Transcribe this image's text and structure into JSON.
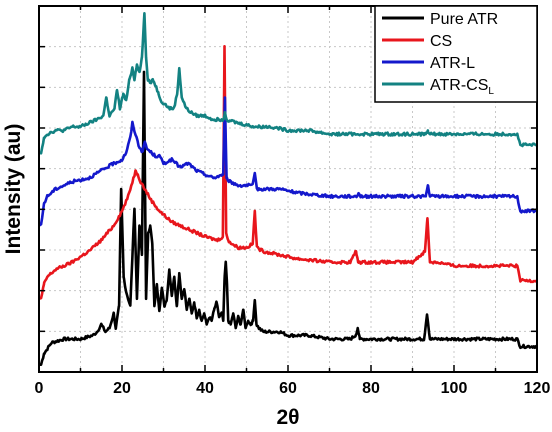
{
  "chart_data": {
    "type": "line",
    "xlabel": "2θ",
    "ylabel": "Intensity (au)",
    "xlim": [
      0,
      120
    ],
    "x_ticks": [
      "0",
      "20",
      "40",
      "60",
      "80",
      "100",
      "120"
    ],
    "y_tick_labels_shown": false,
    "grid": true,
    "legend_position": "top-right",
    "series": [
      {
        "name": "Pure ATR",
        "legend_main": "Pure ATR",
        "legend_sub": "",
        "color": "#000000",
        "baseline": 0.02,
        "x": [
          0.5,
          1.2,
          3,
          6,
          10,
          13,
          14,
          15,
          16,
          17,
          18,
          18.5,
          19.3,
          19.8,
          20.4,
          21,
          22,
          23,
          23.6,
          24.2,
          24.8,
          25.3,
          25.8,
          26.3,
          26.8,
          27.3,
          27.8,
          28.4,
          29,
          29.6,
          30.2,
          30.8,
          31.4,
          32,
          32.6,
          33.2,
          33.8,
          34.4,
          35,
          35.6,
          36.2,
          36.8,
          37.4,
          38,
          38.6,
          39.2,
          39.8,
          40.4,
          41,
          41.6,
          42.2,
          42.8,
          43.4,
          44,
          44.4,
          44.7,
          45,
          45.3,
          45.6,
          46.2,
          46.8,
          47.4,
          48,
          48.6,
          49.2,
          49.8,
          50.4,
          51,
          51.6,
          52,
          52.4,
          53,
          54,
          56,
          58,
          60,
          65,
          70,
          75,
          76.3,
          76.8,
          77.3,
          79,
          85,
          90,
          92.8,
          93.5,
          94.2,
          96,
          100,
          110,
          115.2,
          116,
          118,
          120
        ],
        "y": [
          0.02,
          0.05,
          0.08,
          0.09,
          0.09,
          0.1,
          0.11,
          0.13,
          0.11,
          0.12,
          0.16,
          0.12,
          0.18,
          0.5,
          0.26,
          0.22,
          0.18,
          0.45,
          0.2,
          0.4,
          0.32,
          0.82,
          0.2,
          0.38,
          0.4,
          0.35,
          0.18,
          0.24,
          0.17,
          0.23,
          0.18,
          0.2,
          0.28,
          0.21,
          0.26,
          0.18,
          0.27,
          0.2,
          0.23,
          0.17,
          0.2,
          0.16,
          0.19,
          0.15,
          0.17,
          0.14,
          0.16,
          0.13,
          0.15,
          0.14,
          0.17,
          0.19,
          0.15,
          0.16,
          0.14,
          0.25,
          0.3,
          0.24,
          0.14,
          0.13,
          0.16,
          0.12,
          0.15,
          0.13,
          0.17,
          0.12,
          0.14,
          0.13,
          0.14,
          0.2,
          0.13,
          0.12,
          0.11,
          0.11,
          0.11,
          0.1,
          0.1,
          0.09,
          0.09,
          0.1,
          0.12,
          0.09,
          0.09,
          0.09,
          0.09,
          0.09,
          0.16,
          0.09,
          0.09,
          0.09,
          0.09,
          0.09,
          0.07,
          0.07,
          0.07
        ]
      },
      {
        "name": "CS",
        "legend_main": "CS",
        "legend_sub": "",
        "color": "#e8161c",
        "baseline": 0.2,
        "x": [
          0.5,
          1.2,
          2,
          4,
          8,
          12,
          15,
          18,
          20,
          21.5,
          22.5,
          23.3,
          23.8,
          24.5,
          25.5,
          27,
          29,
          32,
          36,
          40,
          43,
          44.3,
          44.7,
          45.1,
          45.6,
          46.5,
          48,
          50,
          51.5,
          52,
          52.5,
          54,
          58,
          62,
          70,
          75,
          76.4,
          76.9,
          77.4,
          80,
          85,
          90,
          93,
          93.6,
          94.2,
          96,
          100,
          105,
          110,
          115.2,
          116,
          118,
          120
        ],
        "y": [
          0.2,
          0.24,
          0.26,
          0.28,
          0.3,
          0.33,
          0.36,
          0.4,
          0.44,
          0.48,
          0.52,
          0.55,
          0.54,
          0.52,
          0.5,
          0.47,
          0.44,
          0.41,
          0.39,
          0.37,
          0.36,
          0.37,
          0.89,
          0.38,
          0.36,
          0.35,
          0.34,
          0.34,
          0.35,
          0.44,
          0.34,
          0.33,
          0.32,
          0.31,
          0.3,
          0.3,
          0.33,
          0.3,
          0.3,
          0.3,
          0.3,
          0.3,
          0.33,
          0.42,
          0.3,
          0.3,
          0.29,
          0.29,
          0.29,
          0.29,
          0.25,
          0.25,
          0.25
        ]
      },
      {
        "name": "ATR-L",
        "legend_main": "ATR-L",
        "legend_sub": "",
        "color": "#1418cc",
        "baseline": 0.4,
        "x": [
          0.5,
          1.2,
          2,
          4,
          8,
          12,
          15,
          18,
          20,
          21,
          22,
          22.5,
          23,
          24,
          25,
          25.5,
          26,
          27,
          28,
          29,
          30,
          32,
          34,
          36,
          38,
          40,
          42,
          44.4,
          44.8,
          45.2,
          46,
          48,
          50,
          51.5,
          52,
          52.5,
          54,
          58,
          62,
          70,
          76.5,
          77,
          77.5,
          85,
          90,
          93.2,
          93.7,
          94.2,
          100,
          110,
          115.2,
          116,
          118,
          120
        ],
        "y": [
          0.4,
          0.46,
          0.48,
          0.5,
          0.52,
          0.53,
          0.55,
          0.57,
          0.58,
          0.6,
          0.64,
          0.68,
          0.66,
          0.62,
          0.6,
          0.63,
          0.61,
          0.6,
          0.59,
          0.59,
          0.57,
          0.58,
          0.56,
          0.57,
          0.55,
          0.54,
          0.53,
          0.54,
          0.75,
          0.53,
          0.52,
          0.51,
          0.51,
          0.51,
          0.54,
          0.5,
          0.5,
          0.5,
          0.49,
          0.48,
          0.48,
          0.49,
          0.48,
          0.48,
          0.48,
          0.48,
          0.51,
          0.48,
          0.48,
          0.48,
          0.48,
          0.44,
          0.44,
          0.44
        ]
      },
      {
        "name": "ATR-CSL",
        "legend_main": "ATR-CS",
        "legend_sub": "L",
        "color": "#138282",
        "baseline": 0.6,
        "x": [
          0.5,
          1.2,
          2,
          4,
          6,
          8,
          10,
          12,
          14,
          15.5,
          16.2,
          17,
          18.2,
          18.8,
          19.5,
          20.3,
          21,
          21.8,
          22.5,
          23,
          23.6,
          24.2,
          24.8,
          25.4,
          25.8,
          26.2,
          26.8,
          27.4,
          28.2,
          28.8,
          29.5,
          30.5,
          31.5,
          32.5,
          33.3,
          33.8,
          34.4,
          35.5,
          36.5,
          38,
          40,
          42,
          44.4,
          44.8,
          45.2,
          48,
          52,
          56,
          60,
          65,
          70,
          75,
          80,
          85,
          90,
          93.2,
          93.7,
          94.2,
          100,
          110,
          115.2,
          116,
          118,
          120
        ],
        "y": [
          0.6,
          0.64,
          0.65,
          0.66,
          0.66,
          0.67,
          0.67,
          0.68,
          0.69,
          0.7,
          0.75,
          0.7,
          0.72,
          0.77,
          0.72,
          0.76,
          0.74,
          0.8,
          0.83,
          0.8,
          0.84,
          0.82,
          0.86,
          0.98,
          0.86,
          0.8,
          0.79,
          0.8,
          0.78,
          0.76,
          0.74,
          0.73,
          0.72,
          0.72,
          0.76,
          0.83,
          0.75,
          0.72,
          0.71,
          0.7,
          0.7,
          0.69,
          0.69,
          0.71,
          0.69,
          0.68,
          0.67,
          0.67,
          0.66,
          0.66,
          0.65,
          0.65,
          0.65,
          0.65,
          0.65,
          0.65,
          0.66,
          0.65,
          0.65,
          0.65,
          0.65,
          0.62,
          0.62,
          0.62
        ]
      }
    ]
  },
  "colors": {
    "axis": "#000000",
    "grid": "#c8c8c8",
    "background": "#ffffff"
  }
}
